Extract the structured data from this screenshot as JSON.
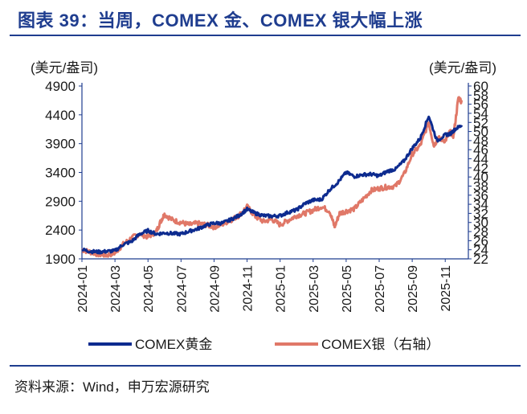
{
  "title": "图表 39：当周，COMEX 金、COMEX 银大幅上涨",
  "source": "资料来源：Wind，申万宏源研究",
  "chart_data": {
    "type": "line",
    "left_unit": "(美元/盎司)",
    "right_unit": "(美元/盎司)",
    "y_left": {
      "min": 1900,
      "max": 4900,
      "ticks": [
        1900,
        2400,
        2900,
        3400,
        3900,
        4400,
        4900
      ]
    },
    "y_right": {
      "min": 22,
      "max": 60,
      "ticks": [
        22,
        24,
        26,
        28,
        30,
        32,
        34,
        36,
        38,
        40,
        42,
        44,
        46,
        48,
        50,
        52,
        54,
        56,
        58,
        60
      ]
    },
    "x_range": [
      0,
      23.4
    ],
    "x_ticks": [
      "2024-01",
      "2024-03",
      "2024-05",
      "2024-07",
      "2024-09",
      "2024-11",
      "2025-01",
      "2025-03",
      "2025-05",
      "2025-07",
      "2025-09",
      "2025-11"
    ],
    "series": [
      {
        "name": "COMEX黄金",
        "axis": "left",
        "color": "#0d2b8f",
        "x": [
          0.0,
          0.5,
          1.0,
          1.5,
          2.0,
          2.5,
          3.0,
          3.5,
          4.0,
          4.5,
          5.0,
          5.5,
          6.0,
          6.5,
          7.0,
          7.5,
          8.0,
          8.5,
          9.0,
          9.5,
          10.0,
          10.5,
          11.0,
          11.5,
          12.0,
          12.5,
          13.0,
          13.5,
          14.0,
          14.5,
          15.0,
          15.5,
          16.0,
          16.5,
          17.0,
          17.5,
          18.0,
          18.5,
          19.0,
          19.5,
          20.0,
          20.5,
          21.0,
          21.5,
          22.0,
          22.3,
          22.6,
          23.0
        ],
        "values": [
          2060,
          2030,
          2020,
          2030,
          2040,
          2150,
          2200,
          2330,
          2390,
          2330,
          2350,
          2340,
          2330,
          2380,
          2420,
          2480,
          2520,
          2520,
          2580,
          2650,
          2760,
          2690,
          2650,
          2640,
          2650,
          2710,
          2750,
          2860,
          2920,
          2930,
          3100,
          3230,
          3400,
          3330,
          3360,
          3370,
          3340,
          3420,
          3460,
          3600,
          3820,
          4000,
          4380,
          3950,
          4050,
          4070,
          4150,
          4220
        ]
      },
      {
        "name": "COMEX银（右轴）",
        "axis": "right",
        "color": "#e07868",
        "x": [
          0.0,
          0.5,
          1.0,
          1.5,
          2.0,
          2.5,
          3.0,
          3.5,
          4.0,
          4.5,
          4.8,
          5.0,
          5.5,
          6.0,
          6.5,
          7.0,
          7.5,
          8.0,
          8.5,
          9.0,
          9.5,
          10.0,
          10.5,
          11.0,
          11.5,
          12.0,
          12.5,
          13.0,
          13.5,
          14.0,
          14.5,
          15.0,
          15.3,
          15.6,
          16.0,
          16.5,
          17.0,
          17.5,
          18.0,
          18.5,
          19.0,
          19.5,
          20.0,
          20.5,
          21.0,
          21.3,
          21.6,
          22.0,
          22.3,
          22.5,
          22.8,
          23.0
        ],
        "values": [
          24.0,
          23.5,
          23.0,
          22.8,
          23.3,
          25.2,
          26.6,
          27.5,
          26.8,
          28.0,
          30.5,
          31.8,
          30.5,
          30.0,
          29.5,
          29.8,
          29.5,
          29.0,
          29.6,
          30.5,
          31.5,
          33.5,
          31.3,
          30.2,
          30.7,
          29.5,
          30.5,
          31.5,
          32.0,
          32.7,
          33.5,
          32.5,
          29.0,
          32.0,
          32.5,
          33.0,
          35.0,
          37.0,
          37.5,
          37.8,
          38.0,
          40.5,
          45.0,
          47.0,
          52.0,
          47.0,
          48.5,
          48.0,
          50.0,
          49.0,
          57.5,
          56.5
        ]
      }
    ],
    "legend": [
      "COMEX黄金",
      "COMEX银（右轴）"
    ],
    "legend_position": "bottom"
  }
}
